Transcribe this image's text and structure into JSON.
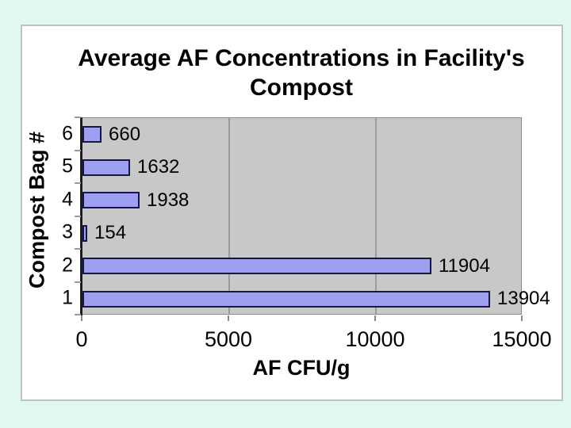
{
  "canvas": {
    "bg_color": "#e1f8f2",
    "slide_bg": "#ffffff",
    "slide_border": "#b9c4c4"
  },
  "chart_data": {
    "type": "bar",
    "orientation": "horizontal",
    "title": "Average AF Concentrations in Facility's Compost",
    "title_lines": [
      "Average AF Concentrations in Facility's",
      "Compost"
    ],
    "xlabel": "AF CFU/g",
    "ylabel": "Compost Bag #",
    "categories": [
      "6",
      "5",
      "4",
      "3",
      "2",
      "1"
    ],
    "values": [
      660,
      1632,
      1938,
      154,
      11904,
      13904
    ],
    "data_labels": [
      "660",
      "1632",
      "1938",
      "154",
      "11904",
      "13904"
    ],
    "xlim": [
      0,
      15000
    ],
    "xticks": [
      0,
      5000,
      10000,
      15000
    ],
    "xtick_labels": [
      "0",
      "5000",
      "10000",
      "15000"
    ],
    "gridlines_at": [
      5000,
      10000
    ],
    "legend": "none",
    "grid": "vertical-only",
    "colors": {
      "bar_fill": "#9f9ff2",
      "bar_border": "#15154a",
      "plot_bg": "#c8c8c8",
      "plot_border": "#8a8a8a",
      "gridline": "#9b9b9b",
      "axis_line": "#1e1e1e",
      "text": "#000000"
    }
  }
}
